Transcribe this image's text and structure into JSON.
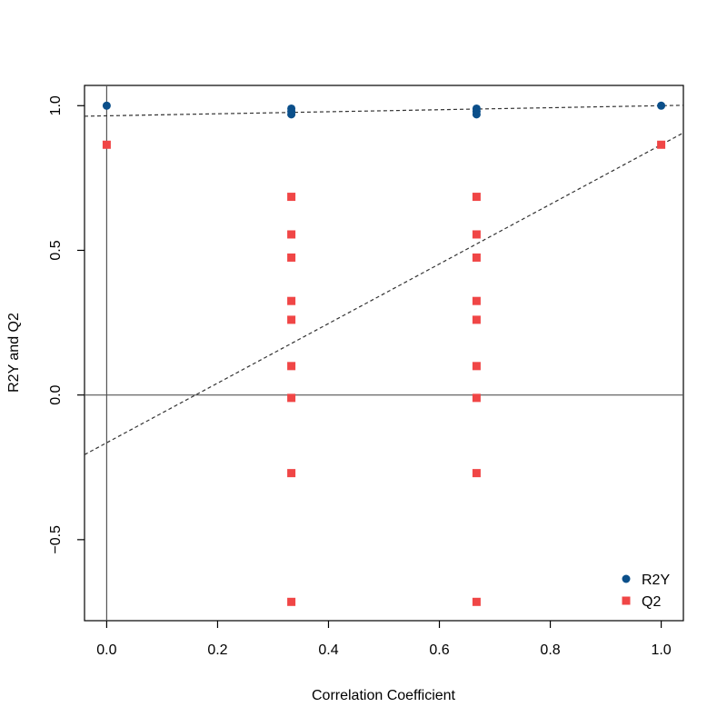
{
  "chart_data": {
    "type": "scatter",
    "title": "",
    "xlabel": "Correlation Coefficient",
    "ylabel": "R2Y and Q2",
    "xlim": [
      -0.04,
      1.04
    ],
    "ylim": [
      -0.78,
      1.07
    ],
    "x_ticks": [
      0.0,
      0.2,
      0.4,
      0.6,
      0.8,
      1.0
    ],
    "x_tick_labels": [
      "0.0",
      "0.2",
      "0.4",
      "0.6",
      "0.8",
      "1.0"
    ],
    "y_ticks": [
      -0.5,
      0.0,
      0.5,
      1.0
    ],
    "y_tick_labels": [
      "−0.5",
      "0.0",
      "0.5",
      "1.0"
    ],
    "grid": false,
    "legend_position": "bottom-right",
    "reference_lines": {
      "horizontal": 0,
      "vertical": 0
    },
    "series": [
      {
        "name": "R2Y",
        "marker": "circle",
        "color": "#0b4f8a",
        "points": [
          [
            0.0,
            1.0
          ],
          [
            0.333,
            0.99
          ],
          [
            0.333,
            0.98
          ],
          [
            0.333,
            0.97
          ],
          [
            0.667,
            0.99
          ],
          [
            0.667,
            0.98
          ],
          [
            0.667,
            0.97
          ],
          [
            1.0,
            1.0
          ]
        ],
        "trend": {
          "intercept": 0.965,
          "slope": 0.035
        }
      },
      {
        "name": "Q2",
        "marker": "square",
        "color": "#f04646",
        "points": [
          [
            0.0,
            0.865
          ],
          [
            0.333,
            0.685
          ],
          [
            0.333,
            0.555
          ],
          [
            0.333,
            0.475
          ],
          [
            0.333,
            0.325
          ],
          [
            0.333,
            0.26
          ],
          [
            0.333,
            0.1
          ],
          [
            0.333,
            -0.01
          ],
          [
            0.333,
            -0.27
          ],
          [
            0.333,
            -0.715
          ],
          [
            0.667,
            0.685
          ],
          [
            0.667,
            0.555
          ],
          [
            0.667,
            0.475
          ],
          [
            0.667,
            0.325
          ],
          [
            0.667,
            0.26
          ],
          [
            0.667,
            0.1
          ],
          [
            0.667,
            -0.01
          ],
          [
            0.667,
            -0.27
          ],
          [
            0.667,
            -0.715
          ],
          [
            1.0,
            0.865
          ]
        ],
        "trend": {
          "intercept": -0.165,
          "slope": 1.03
        }
      }
    ]
  }
}
